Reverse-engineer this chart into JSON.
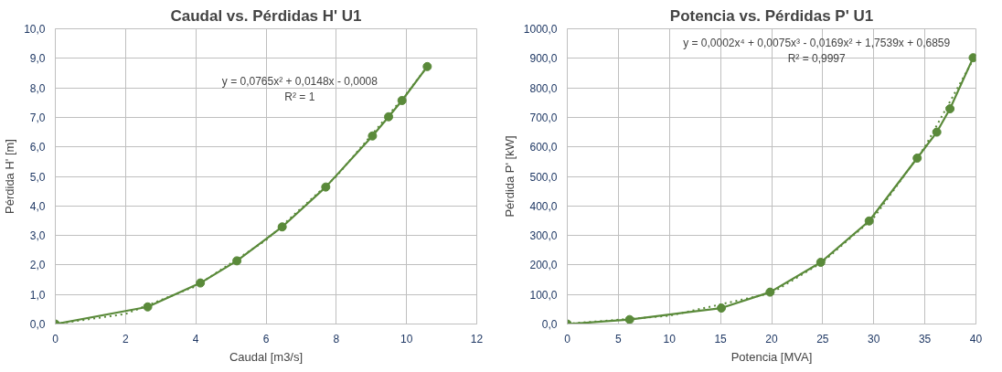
{
  "chart_data": [
    {
      "type": "line",
      "title": "Caudal vs. Pérdidas H' U1",
      "xlabel": "Caudal [m3/s]",
      "ylabel": "Pérdida H' [m]",
      "series": [
        {
          "color": "#5a8a3a",
          "marker": "circle",
          "line_style": "solid",
          "x": [
            0,
            2.63,
            4.13,
            5.17,
            6.46,
            7.7,
            9.03,
            9.49,
            9.87,
            10.59
          ],
          "values": [
            0,
            0.58,
            1.39,
            2.14,
            3.29,
            4.64,
            6.37,
            7.02,
            7.57,
            8.72
          ]
        },
        {
          "color": "#5a8a3a",
          "marker": "none",
          "line_style": "dotted",
          "x": [
            0,
            2,
            4,
            6,
            8,
            10,
            10.59
          ],
          "values": [
            0,
            0.34,
            1.28,
            2.84,
            5.0,
            7.8,
            8.72
          ]
        }
      ],
      "xlim": [
        0,
        12
      ],
      "xticks": [
        0,
        2,
        4,
        6,
        8,
        10,
        12
      ],
      "ylim": [
        0,
        10
      ],
      "yticks": [
        {
          "value": 0,
          "label": "0,0"
        },
        {
          "value": 1,
          "label": "1,0"
        },
        {
          "value": 2,
          "label": "2,0"
        },
        {
          "value": 3,
          "label": "3,0"
        },
        {
          "value": 4,
          "label": "4,0"
        },
        {
          "value": 5,
          "label": "5,0"
        },
        {
          "value": 6,
          "label": "6,0"
        },
        {
          "value": 7,
          "label": "7,0"
        },
        {
          "value": 8,
          "label": "8,0"
        },
        {
          "value": 9,
          "label": "9,0"
        },
        {
          "value": 10,
          "label": "10,0"
        }
      ],
      "grid": true,
      "annotations": [
        "y = 0,0765x² + 0,0148x - 0,0008",
        "R² = 1"
      ]
    },
    {
      "type": "line",
      "title": "Potencia vs. Pérdidas P' U1",
      "xlabel": "Potencia [MVA]",
      "ylabel": "Pérdida P' [kW]",
      "series": [
        {
          "color": "#5a8a3a",
          "marker": "circle",
          "line_style": "solid",
          "x": [
            0,
            6.1,
            15.08,
            19.85,
            24.81,
            29.55,
            34.25,
            36.17,
            37.46,
            39.73
          ],
          "values": [
            0,
            15,
            54,
            108,
            209,
            349,
            562,
            650,
            729,
            902
          ]
        },
        {
          "color": "#5a8a3a",
          "marker": "none",
          "line_style": "dotted",
          "x": [
            0,
            10,
            20,
            25,
            30,
            35,
            39.73
          ],
          "values": [
            1,
            28,
            105,
            210,
            360,
            600,
            895
          ]
        }
      ],
      "xlim": [
        0,
        40
      ],
      "xticks": [
        0,
        5,
        10,
        15,
        20,
        25,
        30,
        35,
        40
      ],
      "ylim": [
        0,
        1000
      ],
      "yticks": [
        {
          "value": 0,
          "label": "0,0"
        },
        {
          "value": 100,
          "label": "100,0"
        },
        {
          "value": 200,
          "label": "200,0"
        },
        {
          "value": 300,
          "label": "300,0"
        },
        {
          "value": 400,
          "label": "400,0"
        },
        {
          "value": 500,
          "label": "500,0"
        },
        {
          "value": 600,
          "label": "600,0"
        },
        {
          "value": 700,
          "label": "700,0"
        },
        {
          "value": 800,
          "label": "800,0"
        },
        {
          "value": 900,
          "label": "900,0"
        },
        {
          "value": 1000,
          "label": "1000,0"
        }
      ],
      "grid": true,
      "annotations": [
        "y = 0,0002x⁴ + 0,0075x³ - 0,0169x² + 1,7539x + 0,6859",
        "R² = 0,9997"
      ]
    }
  ]
}
